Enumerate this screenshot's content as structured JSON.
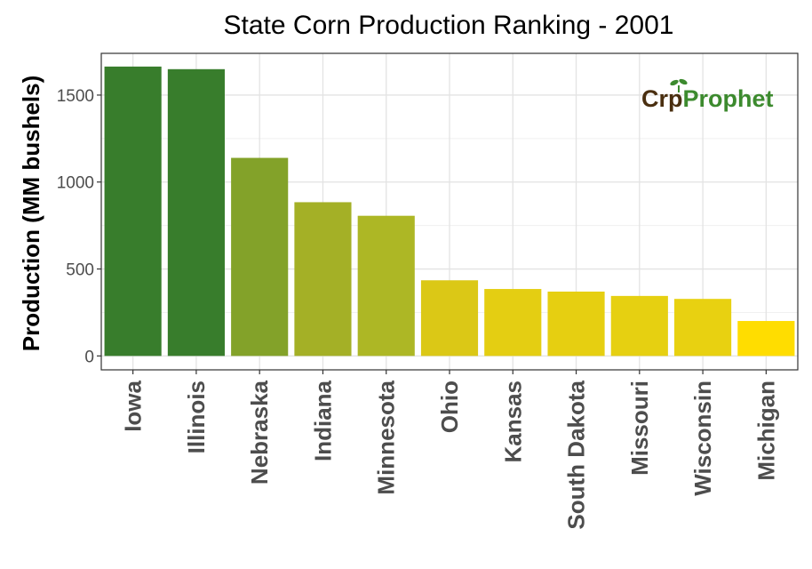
{
  "chart_data": {
    "type": "bar",
    "title": "State Corn Production Ranking - 2001",
    "ylabel": "Production (MM bushels)",
    "xlabel": "",
    "categories": [
      "Iowa",
      "Illinois",
      "Nebraska",
      "Indiana",
      "Minnesota",
      "Ohio",
      "Kansas",
      "South Dakota",
      "Missouri",
      "Wisconsin",
      "Michigan"
    ],
    "values": [
      1664,
      1649,
      1139,
      884,
      806,
      435,
      385,
      370,
      345,
      328,
      201
    ],
    "colors": [
      "#387d2c",
      "#387d2c",
      "#83a229",
      "#a4b026",
      "#adb725",
      "#dbc816",
      "#e4ce12",
      "#e6cf11",
      "#e6d011",
      "#e8d111",
      "#ffdd00"
    ],
    "ylim": [
      0,
      1700
    ],
    "yticks": [
      0,
      500,
      1000,
      1500
    ],
    "grid": true,
    "legend": "none"
  },
  "logo": {
    "part1": "Cr",
    "part2": "p",
    "part3": "Prophet",
    "color_dark": "#4a2f10",
    "color_green": "#3c8a2e"
  }
}
